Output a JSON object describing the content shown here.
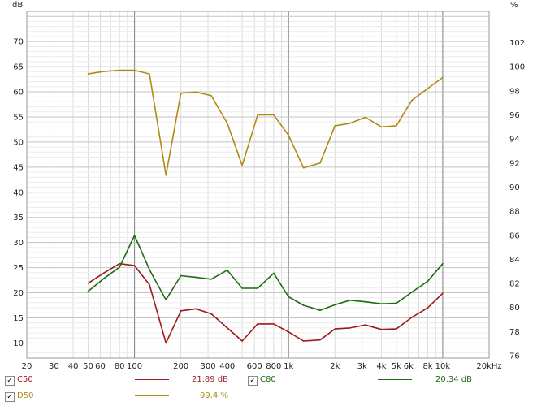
{
  "chart_data": {
    "type": "line",
    "x_scale": "log",
    "xlim": [
      20,
      20000
    ],
    "ylim": [
      7,
      76
    ],
    "y2lim": [
      75.8,
      104.6
    ],
    "grid": true,
    "ylabel": "dB",
    "y2label": "%",
    "x_ticks": [
      {
        "v": 20,
        "label": "20"
      },
      {
        "v": 30,
        "label": "30"
      },
      {
        "v": 40,
        "label": "40"
      },
      {
        "v": 50,
        "label": "50"
      },
      {
        "v": 60,
        "label": "60"
      },
      {
        "v": 80,
        "label": "80"
      },
      {
        "v": 100,
        "label": "100"
      },
      {
        "v": 200,
        "label": "200"
      },
      {
        "v": 300,
        "label": "300"
      },
      {
        "v": 400,
        "label": "400"
      },
      {
        "v": 600,
        "label": "600"
      },
      {
        "v": 800,
        "label": "800"
      },
      {
        "v": 1000,
        "label": "1k"
      },
      {
        "v": 2000,
        "label": "2k"
      },
      {
        "v": 3000,
        "label": "3k"
      },
      {
        "v": 4000,
        "label": "4k"
      },
      {
        "v": 5000,
        "label": "5k"
      },
      {
        "v": 6000,
        "label": "6k"
      },
      {
        "v": 8000,
        "label": "8k"
      },
      {
        "v": 10000,
        "label": "10k"
      },
      {
        "v": 20000,
        "label": "20kHz"
      }
    ],
    "y_ticks": [
      10,
      15,
      20,
      25,
      30,
      35,
      40,
      45,
      50,
      55,
      60,
      65,
      70
    ],
    "y2_ticks": [
      76,
      78,
      80,
      82,
      84,
      86,
      88,
      90,
      92,
      94,
      96,
      98,
      100,
      102
    ],
    "x": [
      50,
      63,
      80,
      100,
      125,
      160,
      200,
      250,
      315,
      400,
      500,
      630,
      800,
      1000,
      1250,
      1600,
      2000,
      2500,
      3150,
      4000,
      5000,
      6300,
      8000,
      10000
    ],
    "series": [
      {
        "name": "C50",
        "axis": "y",
        "color": "#9b1a1a",
        "values": [
          21.9,
          23.9,
          25.8,
          25.4,
          21.6,
          10.0,
          16.4,
          16.8,
          15.8,
          13.0,
          10.4,
          13.8,
          13.8,
          12.2,
          10.4,
          10.6,
          12.8,
          13.0,
          13.6,
          12.7,
          12.8,
          15.1,
          17.0,
          19.9
        ]
      },
      {
        "name": "C80",
        "axis": "y",
        "color": "#1e6b12",
        "values": [
          20.3,
          22.8,
          25.1,
          31.4,
          24.6,
          18.6,
          23.4,
          23.1,
          22.7,
          24.5,
          20.9,
          20.9,
          23.9,
          19.2,
          17.5,
          16.5,
          17.6,
          18.5,
          18.2,
          17.8,
          17.9,
          20.1,
          22.3,
          25.8
        ]
      },
      {
        "name": "D50",
        "axis": "y2",
        "color": "#b08a12",
        "values": [
          99.4,
          99.6,
          99.7,
          99.7,
          99.4,
          91.0,
          97.8,
          97.9,
          97.6,
          95.3,
          91.8,
          96.0,
          96.0,
          94.3,
          91.6,
          92.0,
          95.1,
          95.3,
          95.8,
          95.0,
          95.1,
          97.2,
          98.2,
          99.1
        ]
      }
    ]
  },
  "legend": [
    {
      "check": "✓",
      "name": "C50",
      "value": "21.89 dB",
      "color": "#9b1a1a"
    },
    {
      "check": "✓",
      "name": "C80",
      "value": "20.34 dB",
      "color": "#1e6b12"
    },
    {
      "check": "✓",
      "name": "D50",
      "value": "99.4 %",
      "color": "#b08a12"
    }
  ]
}
